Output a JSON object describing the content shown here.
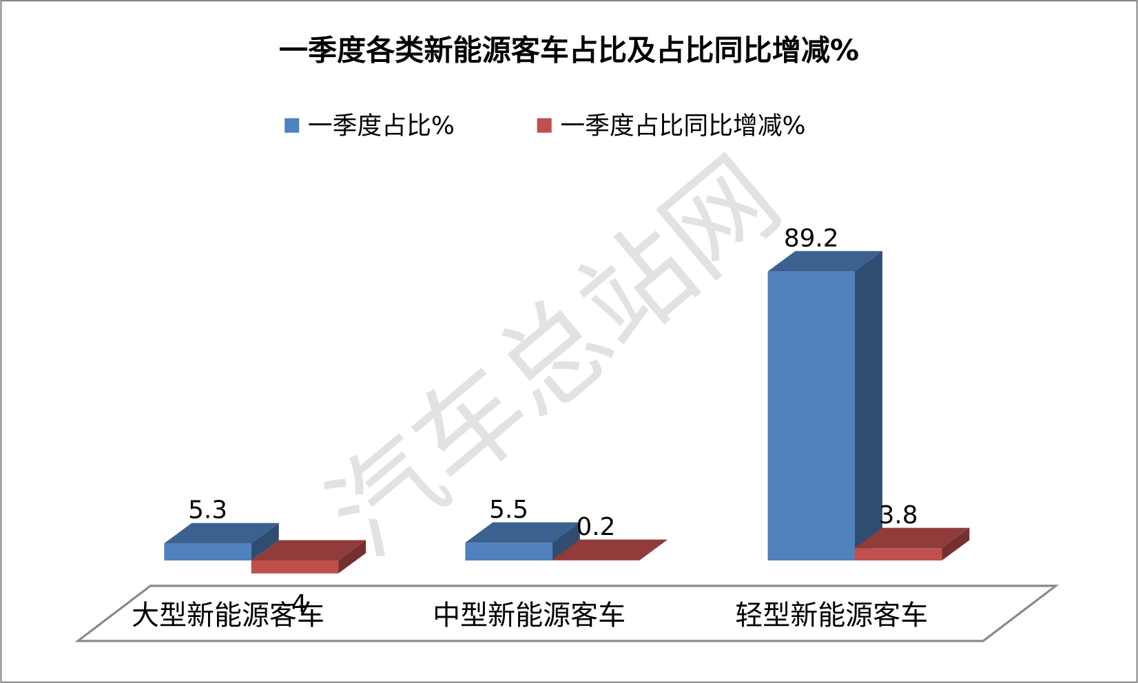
{
  "chart_data": {
    "type": "bar3d",
    "title": "一季度各类新能源客车占比及占比同比增减%",
    "categories": [
      "大型新能源客车",
      "中型新能源客车",
      "轻型新能源客车"
    ],
    "series": [
      {
        "name": "一季度占比%",
        "color": "#4f81bd",
        "values": [
          5.3,
          5.5,
          89.2
        ]
      },
      {
        "name": "一季度占比同比增减%",
        "color": "#c0504d",
        "values": [
          -4,
          0.2,
          3.8
        ]
      }
    ],
    "legend": "top",
    "watermark": "汽车总站网"
  }
}
